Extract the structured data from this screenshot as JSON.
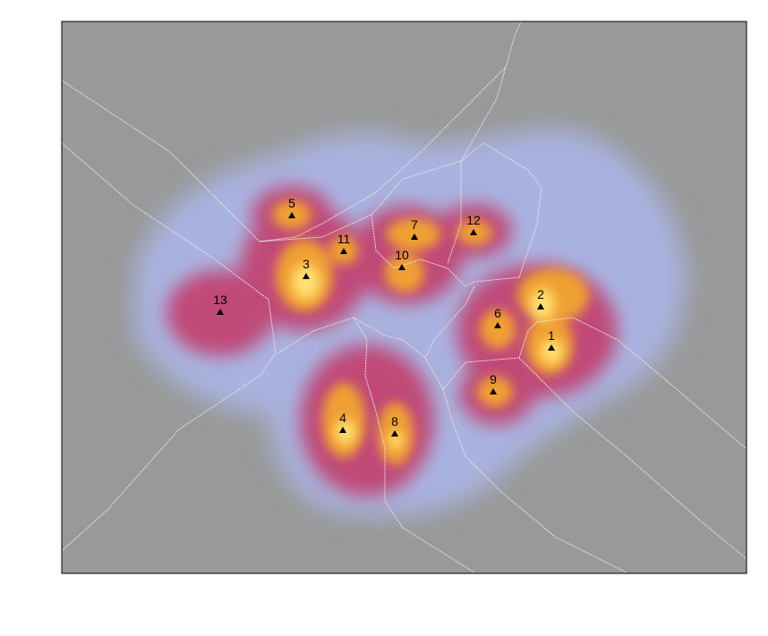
{
  "map": {
    "background_color": "#999999",
    "colors": {
      "halo": "#a9b3e0",
      "mid": "#c04a78",
      "warm": "#e8603a",
      "hot": "#f0a030",
      "core": "#ffe070",
      "boundary": "#e8e6d8",
      "marker": "#000000"
    },
    "marker_icon": "triangle-icon",
    "sites": [
      {
        "label": "1"
      },
      {
        "label": "2"
      },
      {
        "label": "3"
      },
      {
        "label": "4"
      },
      {
        "label": "5"
      },
      {
        "label": "6"
      },
      {
        "label": "7"
      },
      {
        "label": "8"
      },
      {
        "label": "9"
      },
      {
        "label": "10"
      },
      {
        "label": "11"
      },
      {
        "label": "12"
      },
      {
        "label": "13"
      }
    ]
  }
}
